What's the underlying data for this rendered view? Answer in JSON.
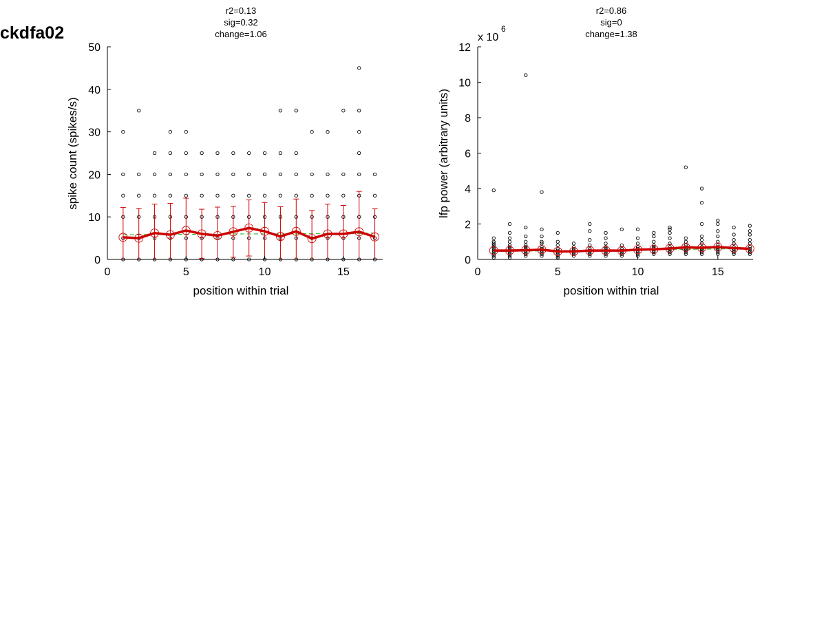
{
  "figure": {
    "label": "ckdfa02"
  },
  "chart_data": [
    {
      "type": "scatter",
      "title_lines": [
        "r2=0.13",
        "sig=0.32",
        "change=1.06"
      ],
      "xlabel": "position within trial",
      "ylabel": "spike count (spikes/s)",
      "xlim": [
        0,
        17.5
      ],
      "ylim": [
        0,
        50
      ],
      "xticks": [
        0,
        5,
        10,
        15
      ],
      "yticks": [
        0,
        10,
        20,
        30,
        40,
        50
      ],
      "scale_note": "",
      "colors": {
        "points": "#000000",
        "mean": "#cc0000",
        "error": "#cc0000",
        "fit": "#33bb33"
      },
      "x": [
        1,
        2,
        3,
        4,
        5,
        6,
        7,
        8,
        9,
        10,
        11,
        12,
        13,
        14,
        15,
        16,
        17
      ],
      "trials_scatter": [
        [
          0,
          5,
          10,
          15,
          20,
          30
        ],
        [
          0,
          5,
          10,
          15,
          20,
          35
        ],
        [
          0,
          5,
          10,
          15,
          20,
          25
        ],
        [
          0,
          5,
          10,
          15,
          20,
          25,
          30
        ],
        [
          0,
          5,
          10,
          15,
          20,
          25,
          30
        ],
        [
          0,
          5,
          10,
          15,
          20,
          25
        ],
        [
          0,
          5,
          10,
          15,
          20,
          25
        ],
        [
          0,
          5,
          10,
          15,
          20,
          25
        ],
        [
          0,
          5,
          10,
          15,
          20,
          25
        ],
        [
          0,
          5,
          10,
          15,
          20,
          25
        ],
        [
          0,
          5,
          10,
          15,
          20,
          25,
          35
        ],
        [
          0,
          5,
          10,
          15,
          20,
          25,
          35
        ],
        [
          0,
          5,
          10,
          15,
          20,
          30
        ],
        [
          0,
          5,
          10,
          15,
          20,
          30
        ],
        [
          0,
          5,
          10,
          15,
          20,
          35
        ],
        [
          0,
          5,
          10,
          15,
          20,
          25,
          30,
          35,
          45
        ],
        [
          0,
          5,
          10,
          15,
          20
        ]
      ],
      "mean": [
        5.2,
        5.0,
        6.2,
        5.8,
        6.8,
        6.0,
        5.6,
        6.5,
        7.4,
        6.6,
        5.4,
        6.6,
        4.9,
        6.0,
        6.0,
        6.5,
        5.3
      ],
      "sd": [
        7.0,
        7.0,
        6.8,
        7.4,
        7.6,
        5.8,
        6.7,
        6.0,
        6.6,
        6.8,
        7.0,
        7.6,
        6.6,
        7.0,
        6.7,
        9.5,
        6.6
      ],
      "fit": [
        5.8,
        5.8,
        5.9,
        5.9,
        5.9,
        5.9,
        5.9,
        6.0,
        6.0,
        6.0,
        6.0,
        6.0,
        6.1,
        6.1,
        6.1,
        6.1,
        6.2
      ]
    },
    {
      "type": "scatter",
      "title_lines": [
        "r2=0.86",
        "sig=0",
        "change=1.38"
      ],
      "xlabel": "position within trial",
      "ylabel": "lfp power (arbitrary units)",
      "xlim": [
        0,
        17.2
      ],
      "ylim": [
        0,
        12
      ],
      "xticks": [
        0,
        5,
        10,
        15
      ],
      "yticks": [
        0,
        2,
        4,
        6,
        8,
        10,
        12
      ],
      "scale_note": "x 10",
      "scale_exp": "6",
      "colors": {
        "points": "#000000",
        "mean": "#cc0000",
        "fit": "#33bb33"
      },
      "x": [
        1,
        2,
        3,
        4,
        5,
        6,
        7,
        8,
        9,
        10,
        11,
        12,
        13,
        14,
        15,
        16,
        17
      ],
      "trials_scatter": [
        [
          0.1,
          0.2,
          0.3,
          0.4,
          0.5,
          0.6,
          0.7,
          0.8,
          0.9,
          1.0,
          1.2,
          3.9
        ],
        [
          0.1,
          0.2,
          0.3,
          0.4,
          0.5,
          0.6,
          0.7,
          0.8,
          1.0,
          1.2,
          1.5,
          2.0
        ],
        [
          0.2,
          0.3,
          0.4,
          0.5,
          0.6,
          0.7,
          0.8,
          1.0,
          1.3,
          1.8,
          10.4
        ],
        [
          0.2,
          0.3,
          0.4,
          0.5,
          0.6,
          0.7,
          0.9,
          1.0,
          1.3,
          1.7,
          3.8
        ],
        [
          0.1,
          0.2,
          0.3,
          0.4,
          0.5,
          0.6,
          0.8,
          1.0,
          1.5
        ],
        [
          0.2,
          0.3,
          0.4,
          0.5,
          0.6,
          0.7,
          0.9
        ],
        [
          0.2,
          0.3,
          0.4,
          0.5,
          0.6,
          0.8,
          1.1,
          1.6,
          2.0
        ],
        [
          0.2,
          0.3,
          0.4,
          0.5,
          0.6,
          0.7,
          0.9,
          1.2,
          1.5
        ],
        [
          0.2,
          0.3,
          0.4,
          0.5,
          0.6,
          0.8,
          1.7
        ],
        [
          0.2,
          0.3,
          0.4,
          0.5,
          0.6,
          0.7,
          0.9,
          1.2,
          1.7
        ],
        [
          0.3,
          0.4,
          0.5,
          0.6,
          0.7,
          0.8,
          1.0,
          1.3,
          1.5
        ],
        [
          0.3,
          0.4,
          0.5,
          0.6,
          0.7,
          0.9,
          1.2,
          1.5,
          1.7,
          1.8
        ],
        [
          0.3,
          0.4,
          0.5,
          0.6,
          0.7,
          0.8,
          1.0,
          1.2,
          5.2
        ],
        [
          0.3,
          0.4,
          0.5,
          0.6,
          0.7,
          0.9,
          1.1,
          1.3,
          2.0,
          3.2,
          4.0
        ],
        [
          0.3,
          0.4,
          0.5,
          0.6,
          0.7,
          0.8,
          1.0,
          1.3,
          1.6,
          2.0,
          2.2
        ],
        [
          0.3,
          0.4,
          0.5,
          0.6,
          0.7,
          0.9,
          1.1,
          1.4,
          1.8
        ],
        [
          0.3,
          0.4,
          0.5,
          0.6,
          0.7,
          0.9,
          1.1,
          1.4,
          1.6,
          1.9
        ]
      ],
      "mean": [
        0.5,
        0.5,
        0.52,
        0.55,
        0.45,
        0.45,
        0.5,
        0.5,
        0.5,
        0.55,
        0.57,
        0.62,
        0.68,
        0.66,
        0.7,
        0.64,
        0.6
      ],
      "fit": [
        0.45,
        0.46,
        0.47,
        0.48,
        0.49,
        0.5,
        0.51,
        0.52,
        0.53,
        0.54,
        0.55,
        0.56,
        0.57,
        0.58,
        0.59,
        0.6,
        0.61
      ]
    }
  ]
}
